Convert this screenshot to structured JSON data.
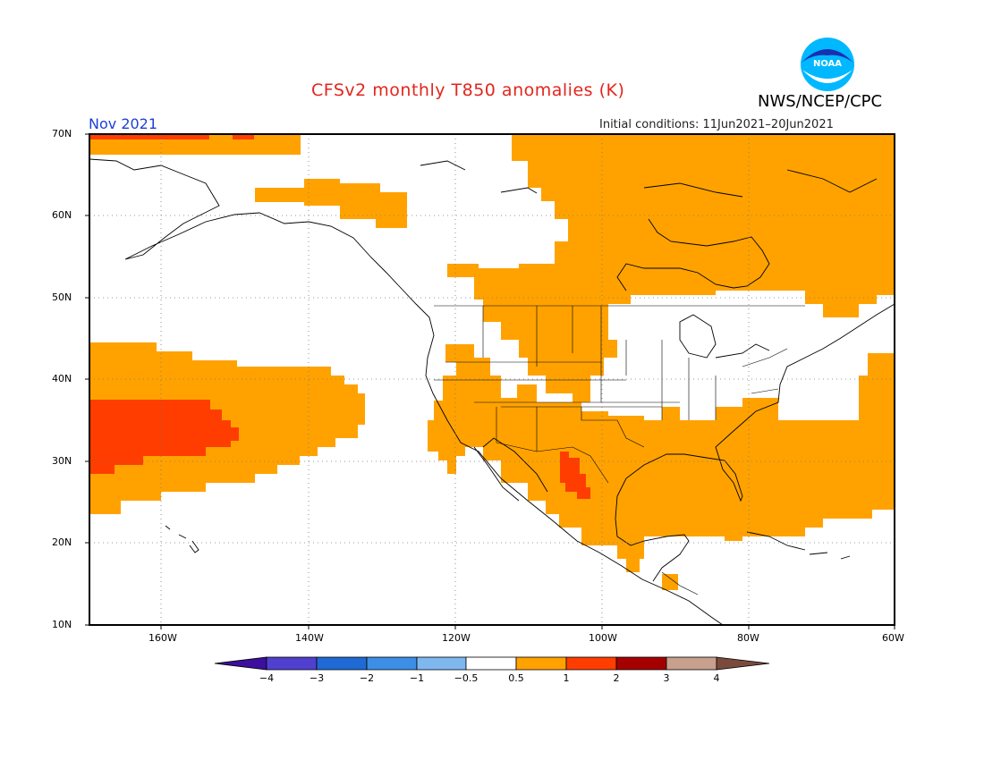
{
  "title": "CFSv2 monthly T850 anomalies (K)",
  "agency": "NWS/NCEP/CPC",
  "logo_text": "NOAA",
  "month_label": "Nov 2021",
  "initial_conditions": "Initial conditions: 11Jun2021–20Jun2021",
  "lat_labels": [
    "70N",
    "60N",
    "50N",
    "40N",
    "30N",
    "20N",
    "10N"
  ],
  "lon_labels": [
    "160W",
    "140W",
    "120W",
    "100W",
    "80W",
    "60W"
  ],
  "colorbar": {
    "labels": [
      "−4",
      "−3",
      "−2",
      "−1",
      "−0.5",
      "0.5",
      "1",
      "2",
      "3",
      "4"
    ],
    "colors": [
      "#3c0f9e",
      "#5140cf",
      "#1f6ad4",
      "#3d8ee6",
      "#7fb8ef",
      "#ffffff",
      "#ffa200",
      "#ff3d00",
      "#a50000",
      "#c8a08e",
      "#7a4b3d"
    ]
  },
  "colors": {
    "warm": "#ffa200",
    "hot": "#ff3d00",
    "title": "#e2261c",
    "month": "#1d3fd8"
  }
}
